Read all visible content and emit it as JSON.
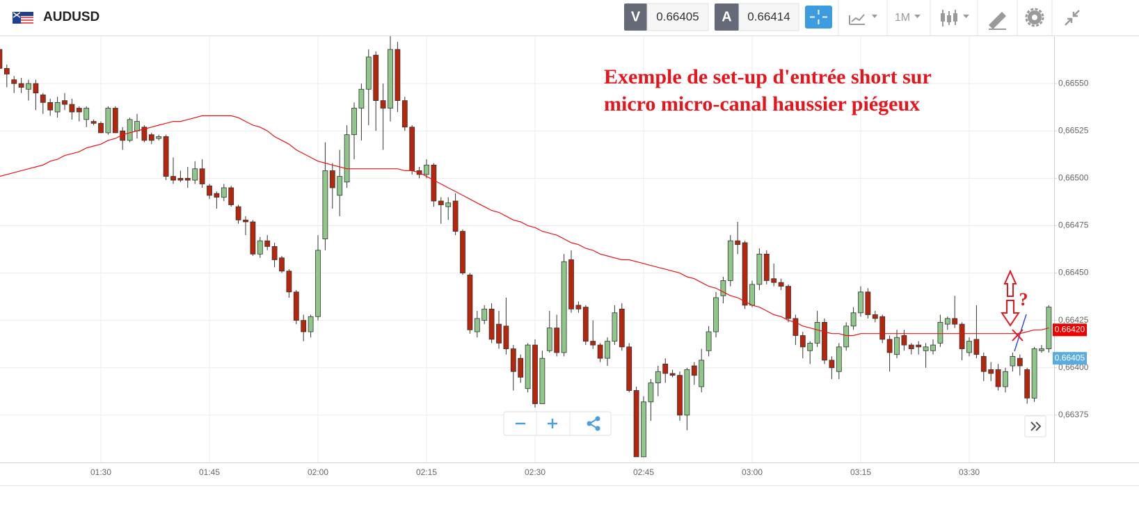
{
  "header": {
    "symbol": "AUDUSD",
    "bid_label": "V",
    "bid": "0.66405",
    "ask_label": "A",
    "ask": "0.66414",
    "timeframe": "1M"
  },
  "chart_data": {
    "type": "candlestick",
    "annotations": [
      "Exemple de set-up d'entrée short sur",
      "micro micro-canal haussier piégeux",
      "?"
    ],
    "up_color": "#8fc78a",
    "down_color": "#b5260c",
    "grid": true,
    "ylim": [
      0.6635,
      0.66575
    ],
    "yticks": [
      {
        "value": 0.66375,
        "label": "0,66375"
      },
      {
        "value": 0.664,
        "label": "0,66400"
      },
      {
        "value": 0.66425,
        "label": "0,66425"
      },
      {
        "value": 0.6645,
        "label": "0,66450"
      },
      {
        "value": 0.66475,
        "label": "0,66475"
      },
      {
        "value": 0.665,
        "label": "0,66500"
      },
      {
        "value": 0.66525,
        "label": "0,66525"
      },
      {
        "value": 0.6655,
        "label": "0,66550"
      }
    ],
    "price_tags": [
      {
        "value": 0.6642,
        "label": "0.66420",
        "color": "#ee0000"
      },
      {
        "value": 0.66405,
        "label": "0.66405",
        "color": "#5aace0"
      }
    ],
    "categories": [
      null,
      null,
      null,
      null,
      null,
      null,
      null,
      null,
      null,
      null,
      null,
      null,
      null,
      null,
      "01:30",
      null,
      null,
      null,
      null,
      null,
      null,
      null,
      null,
      null,
      null,
      null,
      null,
      null,
      null,
      "01:45",
      null,
      null,
      null,
      null,
      null,
      null,
      null,
      null,
      null,
      null,
      null,
      null,
      null,
      null,
      "02:00",
      null,
      null,
      null,
      null,
      null,
      null,
      null,
      null,
      null,
      null,
      null,
      null,
      null,
      null,
      "02:15",
      null,
      null,
      null,
      null,
      null,
      null,
      null,
      null,
      null,
      null,
      null,
      null,
      null,
      null,
      "02:30",
      null,
      null,
      null,
      null,
      null,
      null,
      null,
      null,
      null,
      null,
      null,
      null,
      null,
      null,
      "02:45",
      null,
      null,
      null,
      null,
      null,
      null,
      null,
      null,
      null,
      null,
      null,
      null,
      null,
      null,
      "03:00",
      null,
      null,
      null,
      null,
      null,
      null,
      null,
      null,
      null,
      null,
      null,
      null,
      null,
      null,
      "03:15",
      null,
      null,
      null,
      null,
      null,
      null,
      null,
      null,
      null,
      null,
      null,
      null,
      null,
      null,
      "03:30",
      null,
      null,
      null,
      null,
      null,
      null,
      null,
      null,
      null,
      null,
      null
    ],
    "open": [
      0.66568,
      0.66558,
      0.66552,
      0.6655,
      0.66547,
      0.6655,
      0.66544,
      0.6654,
      0.66535,
      0.66541,
      0.66539,
      0.66537,
      0.66531,
      0.6653,
      0.66529,
      0.66524,
      0.66537,
      0.66525,
      0.6652,
      0.66525,
      0.66527,
      0.66523,
      0.66521,
      0.66522,
      0.66501,
      0.665,
      0.665,
      0.66499,
      0.66505,
      0.66496,
      0.66492,
      0.6649,
      0.66495,
      0.66485,
      0.66478,
      0.66477,
      0.6646,
      0.66467,
      0.66464,
      0.66458,
      0.66451,
      0.6644,
      0.66425,
      0.66419,
      0.66427,
      0.66468,
      0.66504,
      0.66491,
      0.66498,
      0.66523,
      0.66537,
      0.66547,
      0.66565,
      0.66541,
      0.66537,
      0.66568,
      0.66541,
      0.66527,
      0.66504,
      0.66502,
      0.66507,
      0.66488,
      0.66485,
      0.66488,
      0.66472,
      0.66449,
      0.66419,
      0.66425,
      0.66431,
      0.66423,
      0.66422,
      0.6641,
      0.66405,
      0.66389,
      0.66412,
      0.66381,
      0.66409,
      0.66421,
      0.66408,
      0.66457,
      0.66433,
      0.66432,
      0.66414,
      0.66412,
      0.66405,
      0.66414,
      0.66431,
      0.66411,
      0.66388,
      0.66353,
      0.66382,
      0.66392,
      0.66402,
      0.66397,
      0.66396,
      0.66375,
      0.66401,
      0.6639,
      0.66409,
      0.66419,
      0.66438,
      0.66446,
      0.66467,
      0.66466,
      0.66433,
      0.66444,
      0.6646,
      0.66447,
      0.66445,
      0.66443,
      0.66426,
      0.66417,
      0.66409,
      0.66413,
      0.66424,
      0.66404,
      0.66398,
      0.66411,
      0.66422,
      0.66429,
      0.6644,
      0.66428,
      0.66427,
      0.66415,
      0.66407,
      0.66417,
      0.66412,
      0.66412,
      0.66409,
      0.66409,
      0.66413,
      0.66423,
      0.66426,
      0.66423,
      0.66408,
      0.66415,
      0.66406,
      0.66399,
      0.66399,
      0.6639,
      0.66401,
      0.66405,
      0.66399,
      0.66384,
      0.66409,
      0.6641
    ],
    "high": [
      0.66572,
      0.6656,
      0.66554,
      0.66553,
      0.66552,
      0.66552,
      0.66545,
      0.66542,
      0.66543,
      0.66545,
      0.66542,
      0.66538,
      0.66538,
      0.66531,
      0.6653,
      0.66538,
      0.66538,
      0.66527,
      0.66532,
      0.66534,
      0.66528,
      0.66524,
      0.66523,
      0.66523,
      0.66511,
      0.66504,
      0.66506,
      0.66509,
      0.6651,
      0.66497,
      0.66493,
      0.66497,
      0.66496,
      0.66486,
      0.6648,
      0.66478,
      0.66469,
      0.6647,
      0.66466,
      0.66459,
      0.66452,
      0.66441,
      0.66428,
      0.66428,
      0.6647,
      0.66519,
      0.66508,
      0.66515,
      0.66528,
      0.6654,
      0.6655,
      0.66568,
      0.66567,
      0.6655,
      0.66575,
      0.66572,
      0.66543,
      0.66528,
      0.66506,
      0.6651,
      0.66508,
      0.6649,
      0.6649,
      0.66492,
      0.66473,
      0.6645,
      0.6643,
      0.66433,
      0.66434,
      0.6643,
      0.66437,
      0.66412,
      0.66407,
      0.66413,
      0.66415,
      0.66409,
      0.6643,
      0.66428,
      0.6646,
      0.66462,
      0.66435,
      0.66433,
      0.66425,
      0.66413,
      0.66416,
      0.66433,
      0.66434,
      0.66413,
      0.6639,
      0.66385,
      0.66394,
      0.66401,
      0.66405,
      0.66399,
      0.66398,
      0.664,
      0.66403,
      0.6641,
      0.66422,
      0.6644,
      0.66448,
      0.6647,
      0.66477,
      0.66467,
      0.66446,
      0.66463,
      0.66462,
      0.66455,
      0.66447,
      0.66444,
      0.66428,
      0.66419,
      0.66414,
      0.6643,
      0.66426,
      0.66406,
      0.66413,
      0.66424,
      0.66432,
      0.66443,
      0.66442,
      0.6643,
      0.66428,
      0.66417,
      0.6642,
      0.6642,
      0.66413,
      0.66414,
      0.66413,
      0.66415,
      0.66428,
      0.66427,
      0.66438,
      0.66424,
      0.66416,
      0.66433,
      0.66408,
      0.66403,
      0.66402,
      0.664,
      0.66408,
      0.66407,
      0.664,
      0.66411,
      0.66412,
      0.66433
    ],
    "low": [
      0.66556,
      0.66548,
      0.66545,
      0.66545,
      0.66541,
      0.66536,
      0.66534,
      0.66533,
      0.66532,
      0.66536,
      0.66531,
      0.6653,
      0.66527,
      0.66528,
      0.66524,
      0.66523,
      0.66524,
      0.66515,
      0.66519,
      0.66521,
      0.66519,
      0.66518,
      0.6652,
      0.66499,
      0.66497,
      0.66498,
      0.66495,
      0.66497,
      0.66495,
      0.66489,
      0.66484,
      0.66488,
      0.66485,
      0.66476,
      0.6647,
      0.66459,
      0.66458,
      0.66462,
      0.66453,
      0.6645,
      0.66437,
      0.66423,
      0.66414,
      0.66416,
      0.66425,
      0.66462,
      0.66484,
      0.6648,
      0.66495,
      0.6651,
      0.6652,
      0.66528,
      0.66525,
      0.66515,
      0.6653,
      0.66535,
      0.66525,
      0.66502,
      0.665,
      0.665,
      0.66485,
      0.66476,
      0.66478,
      0.6647,
      0.66449,
      0.66418,
      0.66416,
      0.66423,
      0.66413,
      0.6641,
      0.66407,
      0.66388,
      0.66392,
      0.66387,
      0.66379,
      0.66381,
      0.66408,
      0.66406,
      0.66406,
      0.66429,
      0.66429,
      0.66412,
      0.6641,
      0.66403,
      0.66401,
      0.66412,
      0.66409,
      0.66387,
      0.66353,
      0.66353,
      0.66372,
      0.66385,
      0.66392,
      0.66395,
      0.66372,
      0.66367,
      0.66391,
      0.66387,
      0.66406,
      0.66416,
      0.66434,
      0.66443,
      0.6646,
      0.66431,
      0.66432,
      0.66441,
      0.66444,
      0.66443,
      0.66441,
      0.66424,
      0.66412,
      0.66405,
      0.66402,
      0.66411,
      0.66402,
      0.66394,
      0.66394,
      0.66409,
      0.6642,
      0.66427,
      0.66426,
      0.66424,
      0.66413,
      0.66398,
      0.66405,
      0.66409,
      0.66407,
      0.66407,
      0.664,
      0.66407,
      0.66411,
      0.6642,
      0.66421,
      0.66404,
      0.66406,
      0.66405,
      0.66393,
      0.66393,
      0.66388,
      0.66387,
      0.66398,
      0.66396,
      0.66381,
      0.66382,
      0.66408,
      0.66408
    ],
    "close": [
      0.66558,
      0.66555,
      0.6655,
      0.66548,
      0.6655,
      0.66545,
      0.6654,
      0.66536,
      0.6654,
      0.66539,
      0.66535,
      0.66535,
      0.66537,
      0.66529,
      0.66524,
      0.66537,
      0.66524,
      0.6652,
      0.66531,
      0.6653,
      0.6652,
      0.6652,
      0.66522,
      0.66501,
      0.66499,
      0.66499,
      0.66499,
      0.66505,
      0.66497,
      0.66491,
      0.6649,
      0.66495,
      0.66486,
      0.66478,
      0.66477,
      0.6646,
      0.66467,
      0.66464,
      0.66457,
      0.66451,
      0.6644,
      0.66425,
      0.66419,
      0.66427,
      0.66462,
      0.66504,
      0.66495,
      0.66501,
      0.66523,
      0.66537,
      0.66547,
      0.66564,
      0.66541,
      0.66537,
      0.66568,
      0.66541,
      0.66527,
      0.66504,
      0.66502,
      0.66507,
      0.66488,
      0.66486,
      0.66487,
      0.66472,
      0.6645,
      0.6642,
      0.66426,
      0.66431,
      0.66415,
      0.66413,
      0.6641,
      0.66398,
      0.66395,
      0.66412,
      0.66381,
      0.66405,
      0.66421,
      0.66408,
      0.66456,
      0.66431,
      0.66431,
      0.66414,
      0.66412,
      0.66405,
      0.66414,
      0.66429,
      0.66411,
      0.66388,
      0.66353,
      0.66382,
      0.66392,
      0.66398,
      0.66397,
      0.66396,
      0.66375,
      0.66399,
      0.66396,
      0.66404,
      0.66419,
      0.66437,
      0.66446,
      0.66467,
      0.66465,
      0.66433,
      0.66444,
      0.6646,
      0.66446,
      0.66445,
      0.66443,
      0.66426,
      0.66417,
      0.66411,
      0.66413,
      0.66424,
      0.66404,
      0.664,
      0.66411,
      0.66422,
      0.66429,
      0.6644,
      0.66428,
      0.66426,
      0.66415,
      0.66408,
      0.66416,
      0.66412,
      0.6641,
      0.66411,
      0.66411,
      0.66412,
      0.66424,
      0.66426,
      0.66423,
      0.6641,
      0.66414,
      0.66407,
      0.66398,
      0.66397,
      0.6639,
      0.66398,
      0.66406,
      0.66401,
      0.66384,
      0.6641,
      0.6641,
      0.66432
    ],
    "overlay": {
      "type": "line",
      "color": "#ee1111",
      "values": [
        0.66501,
        0.66502,
        0.66503,
        0.66504,
        0.66505,
        0.66506,
        0.66507,
        0.66509,
        0.6651,
        0.66512,
        0.66513,
        0.66514,
        0.66516,
        0.66517,
        0.66518,
        0.6652,
        0.66521,
        0.66523,
        0.66524,
        0.66525,
        0.66526,
        0.66527,
        0.66528,
        0.66529,
        0.6653,
        0.6653,
        0.66531,
        0.66532,
        0.66533,
        0.66533,
        0.66533,
        0.66533,
        0.66533,
        0.66532,
        0.6653,
        0.66528,
        0.66527,
        0.66525,
        0.66522,
        0.6652,
        0.66518,
        0.66515,
        0.66513,
        0.66511,
        0.66509,
        0.66508,
        0.66507,
        0.66506,
        0.66505,
        0.66505,
        0.66505,
        0.66505,
        0.66505,
        0.66505,
        0.66505,
        0.66505,
        0.66504,
        0.66504,
        0.66503,
        0.66501,
        0.66499,
        0.66497,
        0.66495,
        0.66493,
        0.66491,
        0.66489,
        0.66487,
        0.66485,
        0.66483,
        0.66482,
        0.6648,
        0.66478,
        0.66477,
        0.66475,
        0.66474,
        0.66472,
        0.66471,
        0.6647,
        0.66468,
        0.66466,
        0.66465,
        0.66463,
        0.66462,
        0.6646,
        0.66459,
        0.66458,
        0.66457,
        0.66457,
        0.66456,
        0.66455,
        0.66454,
        0.66453,
        0.66452,
        0.66451,
        0.6645,
        0.66448,
        0.66447,
        0.66445,
        0.66443,
        0.66442,
        0.6644,
        0.66438,
        0.66437,
        0.66435,
        0.66433,
        0.66432,
        0.6643,
        0.66428,
        0.66427,
        0.66425,
        0.66424,
        0.66422,
        0.66421,
        0.6642,
        0.66419,
        0.66418,
        0.66418,
        0.66417,
        0.66417,
        0.66418,
        0.66418,
        0.66418,
        0.66418,
        0.66418,
        0.66418,
        0.66418,
        0.66418,
        0.66418,
        0.66418,
        0.66418,
        0.66418,
        0.66418,
        0.66418,
        0.66418,
        0.66418,
        0.66418,
        0.66418,
        0.66418,
        0.66418,
        0.66418,
        0.66418,
        0.66418,
        0.66419,
        0.6642,
        0.6642,
        0.66421
      ]
    }
  }
}
